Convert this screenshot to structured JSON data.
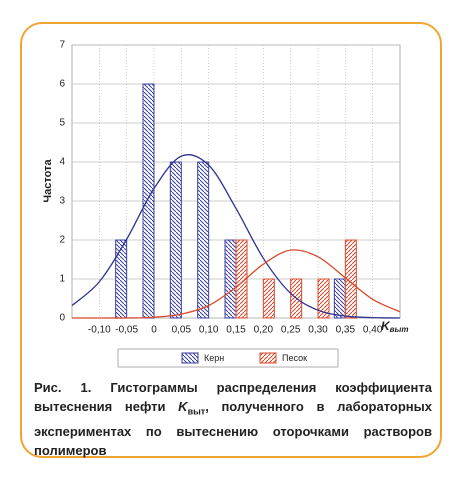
{
  "chart_data": {
    "type": "bar",
    "y_label": "Частота",
    "x_label": "K",
    "x_label_sub": "выт",
    "xlim": [
      -0.15,
      0.45
    ],
    "ylim": [
      0,
      7
    ],
    "yticks": [
      0,
      1,
      2,
      3,
      4,
      5,
      6,
      7
    ],
    "xticks": [
      {
        "value": -0.1,
        "label": "-0,10"
      },
      {
        "value": -0.05,
        "label": "-0,05"
      },
      0,
      {
        "value": 0.05,
        "label": "0,05"
      },
      {
        "value": 0.1,
        "label": "0,10"
      },
      {
        "value": 0.15,
        "label": "0,15"
      },
      {
        "value": 0.2,
        "label": "0,20"
      },
      {
        "value": 0.25,
        "label": "0,25"
      },
      {
        "value": 0.3,
        "label": "0,30"
      },
      {
        "value": 0.35,
        "label": "0,35"
      },
      {
        "value": 0.4,
        "label": "0,40"
      }
    ],
    "grid": true,
    "series": [
      {
        "name": "Керн",
        "color": "#3b3f9c",
        "x": [
          -0.05,
          0,
          0.05,
          0.1,
          0.15,
          0.35
        ],
        "values": [
          2,
          6,
          4,
          4,
          2,
          1
        ]
      },
      {
        "name": "Песок",
        "color": "#d9482b",
        "x": [
          0.15,
          0.2,
          0.25,
          0.3,
          0.35
        ],
        "values": [
          2,
          1,
          1,
          1,
          2
        ]
      }
    ],
    "curves": [
      {
        "color": "#2f338f",
        "x": [
          -0.15,
          -0.1,
          -0.05,
          0,
          0.05,
          0.1,
          0.15,
          0.2,
          0.25,
          0.3,
          0.35,
          0.4,
          0.45
        ],
        "values": [
          0.32,
          0.93,
          2.02,
          3.32,
          4.15,
          3.92,
          2.81,
          1.53,
          0.63,
          0.2,
          0.05,
          0.01,
          0
        ]
      },
      {
        "color": "#d9482b",
        "x": [
          -0.15,
          -0.1,
          -0.05,
          0,
          0.05,
          0.1,
          0.15,
          0.2,
          0.25,
          0.3,
          0.35,
          0.4,
          0.45
        ],
        "values": [
          0,
          0,
          0,
          0.02,
          0.1,
          0.32,
          0.79,
          1.38,
          1.74,
          1.57,
          1.03,
          0.48,
          0.16
        ]
      }
    ]
  },
  "caption": {
    "before": "Рис. 1. Гистограммы распределения коэффициента вытеснения нефти ",
    "symbol": "K",
    "sub": "выт",
    "after": ", полученного в лабораторных экспериментах по вытеснению оторочками растворов полимеров"
  }
}
